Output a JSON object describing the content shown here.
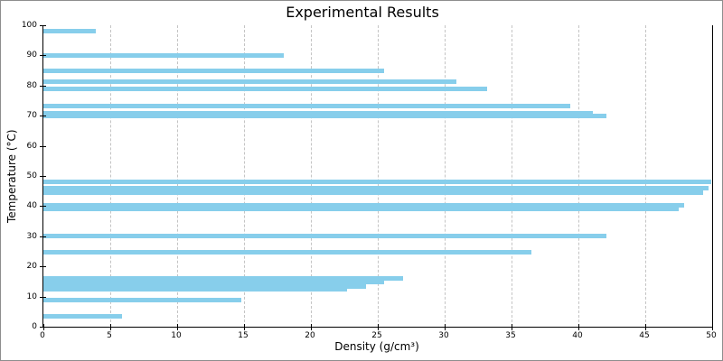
{
  "figure": {
    "title": "Experimental Results"
  },
  "chart_data": {
    "type": "bar",
    "orientation": "horizontal",
    "title": "Experimental Results",
    "xlabel": "Density (g/cm³)",
    "ylabel": "Temperature (°C)",
    "xlim": [
      0,
      50
    ],
    "ylim": [
      0,
      100
    ],
    "xticks": [
      0,
      5,
      10,
      15,
      20,
      25,
      30,
      35,
      40,
      45,
      50
    ],
    "yticks": [
      0,
      10,
      20,
      30,
      40,
      50,
      60,
      70,
      80,
      90,
      100
    ],
    "grid": "vertical-dashed-only",
    "legend": "none",
    "bar_color": "#87CEEB",
    "grid_color": "#c4c4c4",
    "axis_color": "#000000",
    "points": [
      {
        "temperature": 98.0,
        "density": 3.9
      },
      {
        "temperature": 90.1,
        "density": 18.0
      },
      {
        "temperature": 85.0,
        "density": 25.5
      },
      {
        "temperature": 81.3,
        "density": 30.9
      },
      {
        "temperature": 78.9,
        "density": 33.2
      },
      {
        "temperature": 73.3,
        "density": 39.4
      },
      {
        "temperature": 70.9,
        "density": 41.1
      },
      {
        "temperature": 70.0,
        "density": 42.1
      },
      {
        "temperature": 48.0,
        "density": 49.9
      },
      {
        "temperature": 45.9,
        "density": 49.7
      },
      {
        "temperature": 44.4,
        "density": 49.3
      },
      {
        "temperature": 40.2,
        "density": 47.9
      },
      {
        "temperature": 39.1,
        "density": 47.5
      },
      {
        "temperature": 30.1,
        "density": 42.1
      },
      {
        "temperature": 24.6,
        "density": 36.5
      },
      {
        "temperature": 16.0,
        "density": 26.9
      },
      {
        "temperature": 14.8,
        "density": 25.5
      },
      {
        "temperature": 13.4,
        "density": 24.1
      },
      {
        "temperature": 12.4,
        "density": 22.7
      },
      {
        "temperature": 8.7,
        "density": 14.8
      },
      {
        "temperature": 3.5,
        "density": 5.9
      }
    ]
  }
}
